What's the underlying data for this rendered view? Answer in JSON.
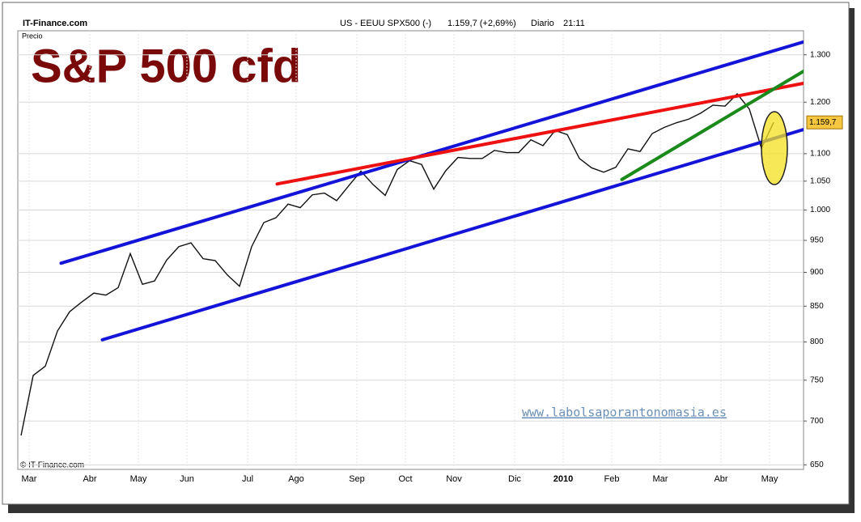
{
  "header": {
    "source": "IT-Finance.com",
    "instrument": "US - EEUU SPX500 (-)",
    "quote": "1.159,7 (+2,69%)",
    "period": "Diario",
    "time": "21:11"
  },
  "chart_data": {
    "type": "line",
    "title": "S&P 500 cfd",
    "axis_label": "Precio",
    "copyright": "© IT-Finance.com",
    "watermark": "www.labolsaporantonomasia.es",
    "categories": [
      "Mar",
      null,
      null,
      null,
      null,
      "Abr",
      null,
      null,
      null,
      "May",
      null,
      null,
      null,
      "Jun",
      null,
      null,
      null,
      null,
      "Jul",
      null,
      null,
      null,
      "Ago",
      null,
      null,
      null,
      null,
      "Sep",
      null,
      null,
      null,
      "Oct",
      null,
      null,
      null,
      "Nov",
      null,
      null,
      null,
      null,
      "Dic",
      null,
      null,
      null,
      "2010",
      null,
      null,
      null,
      "Feb",
      null,
      null,
      null,
      "Mar",
      null,
      null,
      null,
      null,
      "Abr",
      null,
      null,
      null,
      "May",
      null
    ],
    "values": [
      683,
      756,
      768,
      815,
      842,
      856,
      869,
      866,
      877,
      929,
      882,
      887,
      919,
      940,
      946,
      921,
      918,
      896,
      879,
      940,
      979,
      987,
      1010,
      1004,
      1026,
      1029,
      1016,
      1042,
      1068,
      1044,
      1025,
      1071,
      1087,
      1080,
      1036,
      1069,
      1093,
      1091,
      1091,
      1106,
      1102,
      1102,
      1126,
      1115,
      1144,
      1136,
      1091,
      1074,
      1066,
      1075,
      1109,
      1104,
      1138,
      1150,
      1159,
      1166,
      1178,
      1194,
      1192,
      1217,
      1186,
      1110,
      1159.7
    ],
    "color": "#111111",
    "price_label": "1.159,7",
    "log_scale": true,
    "grid": true,
    "ylim": [
      645,
      1354
    ],
    "yticks": [
      650,
      700,
      750,
      800,
      850,
      900,
      950,
      {
        "value": 1000,
        "label": "1.000"
      },
      {
        "value": 1050,
        "label": "1.050"
      },
      {
        "value": 1100,
        "label": "1.100"
      },
      {
        "value": 1200,
        "label": "1.200"
      },
      {
        "value": 1300,
        "label": "1.300"
      }
    ],
    "trendlines": [
      {
        "color": "#1414d8",
        "x": [
          3.3,
          64.5
        ],
        "y": [
          914,
          1329
        ]
      },
      {
        "color": "#1414d8",
        "x": [
          6.7,
          64.5
        ],
        "y": [
          803,
          1146
        ]
      },
      {
        "color": "#ee1111",
        "x": [
          21.1,
          64.5
        ],
        "y": [
          1045,
          1239
        ]
      },
      {
        "color": "#1a8a1a",
        "x": [
          49.5,
          64.5
        ],
        "y": [
          1053,
          1265
        ]
      }
    ]
  }
}
